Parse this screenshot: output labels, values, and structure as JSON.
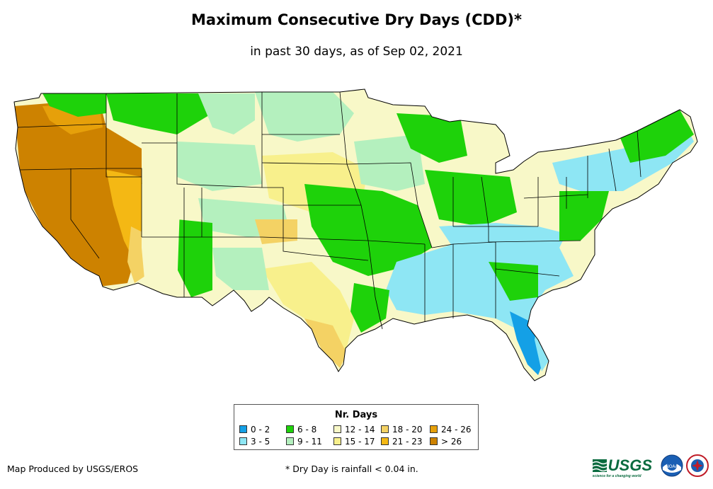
{
  "header": {
    "title": "Maximum Consecutive Dry Days (CDD)*",
    "subtitle": "in past 30 days, as of Sep 02, 2021"
  },
  "legend": {
    "title": "Nr. Days",
    "items": [
      {
        "label": "0 - 2",
        "color": "#14a0e6"
      },
      {
        "label": "3 - 5",
        "color": "#8ee6f4"
      },
      {
        "label": "6 - 8",
        "color": "#1ed20a"
      },
      {
        "label": "9 - 11",
        "color": "#b4f0be"
      },
      {
        "label": "12 - 14",
        "color": "#f8f8c8"
      },
      {
        "label": "15 - 17",
        "color": "#f8f08c"
      },
      {
        "label": "18 - 20",
        "color": "#f4d264"
      },
      {
        "label": "21 - 23",
        "color": "#f4b814"
      },
      {
        "label": "24 - 26",
        "color": "#e6a00a"
      },
      {
        "label": "> 26",
        "color": "#cd8200"
      }
    ]
  },
  "footer": {
    "producer": "Map Produced by USGS/EROS",
    "note": "* Dry Day is rainfall < 0.04 in."
  },
  "logos": {
    "usgs": "USGS",
    "usgs_tagline": "science for a changing world",
    "noaa": "NOAA",
    "nws": "NATIONAL WEATHER SERVICE"
  }
}
